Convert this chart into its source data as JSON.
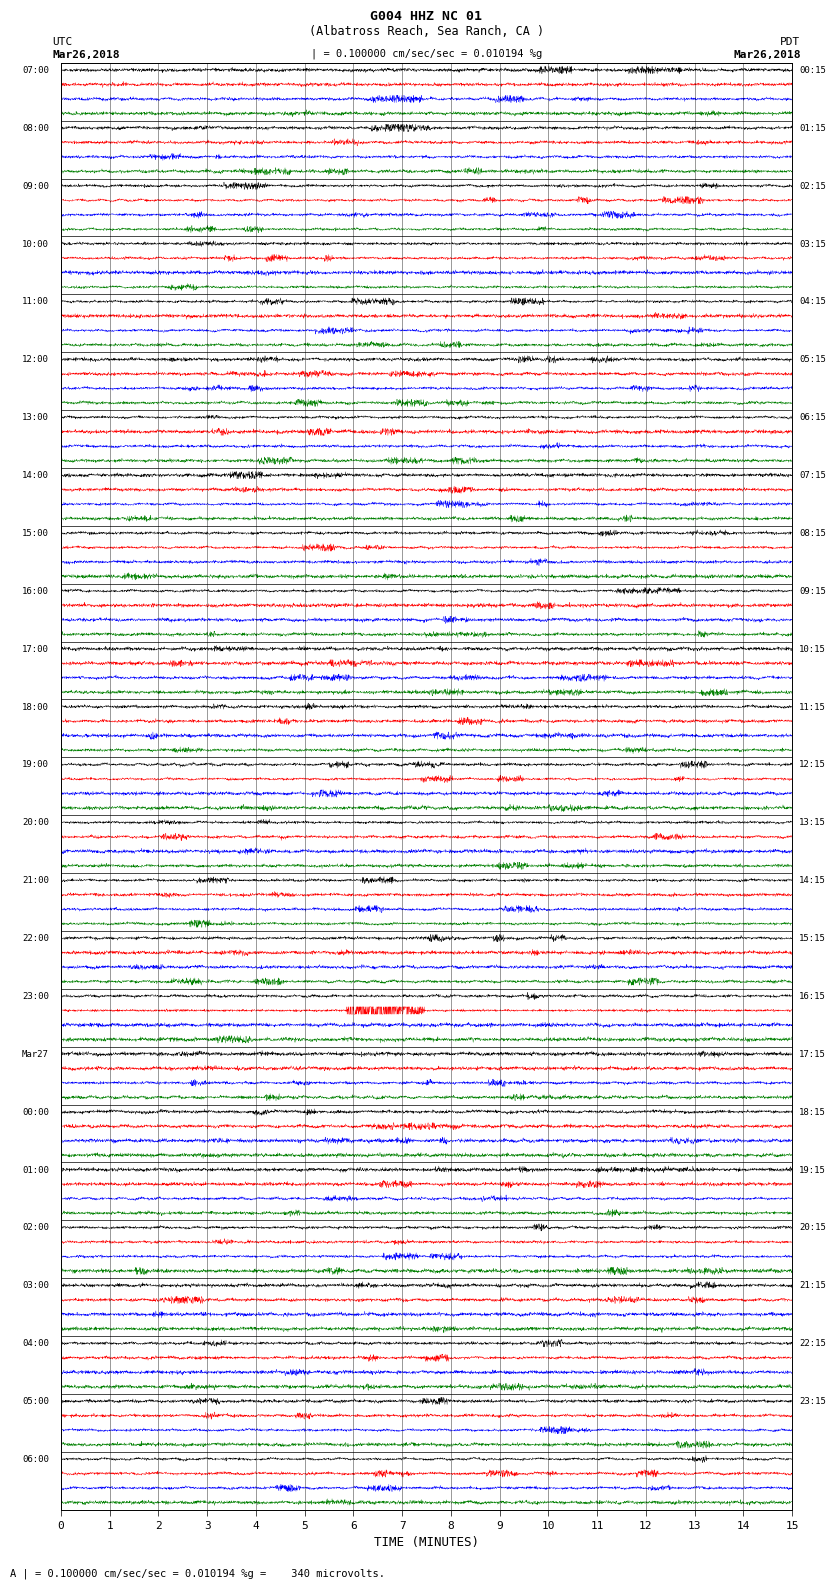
{
  "title_line1": "G004 HHZ NC 01",
  "title_line2": "(Albatross Reach, Sea Ranch, CA )",
  "scale_label": "| = 0.100000 cm/sec/sec = 0.010194 %g",
  "left_label": "UTC",
  "right_label": "PDT",
  "left_date": "Mar26,2018",
  "right_date": "Mar26,2018",
  "xlabel": "TIME (MINUTES)",
  "bottom_note": "A | = 0.100000 cm/sec/sec = 0.010194 %g =    340 microvolts.",
  "utc_row_labels": [
    "07:00",
    "08:00",
    "09:00",
    "10:00",
    "11:00",
    "12:00",
    "13:00",
    "14:00",
    "15:00",
    "16:00",
    "17:00",
    "18:00",
    "19:00",
    "20:00",
    "21:00",
    "22:00",
    "23:00",
    "Mar27",
    "00:00",
    "01:00",
    "02:00",
    "03:00",
    "04:00",
    "05:00",
    "06:00"
  ],
  "pdt_row_labels": [
    "00:15",
    "01:15",
    "02:15",
    "03:15",
    "04:15",
    "05:15",
    "06:15",
    "07:15",
    "08:15",
    "09:15",
    "10:15",
    "11:15",
    "12:15",
    "13:15",
    "14:15",
    "15:15",
    "16:15",
    "17:15",
    "18:15",
    "19:15",
    "20:15",
    "21:15",
    "22:15",
    "23:15",
    ""
  ],
  "colors": [
    "black",
    "red",
    "blue",
    "green"
  ],
  "background_color": "white",
  "n_rows": 25,
  "traces_per_row": 4,
  "minutes": 15,
  "samples_per_minute": 200,
  "trace_scale": 0.28,
  "noise_base": 0.05,
  "event_row": 16,
  "event_channel": 1
}
